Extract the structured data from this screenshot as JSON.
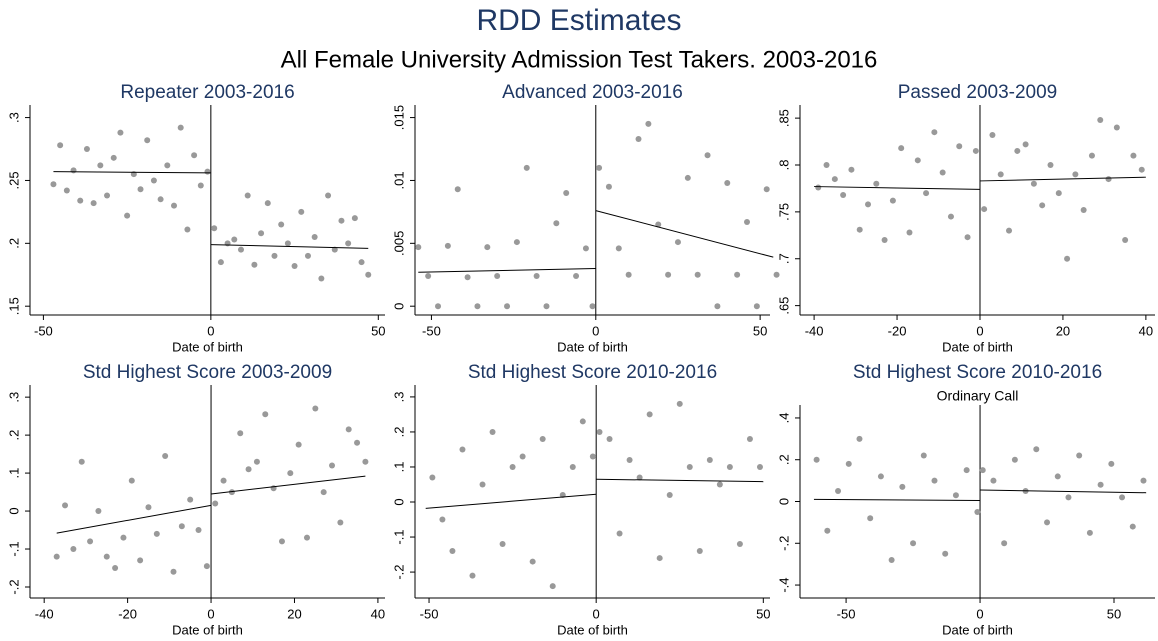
{
  "title": "RDD Estimates",
  "subtitle": "All Female University Admission Test Takers. 2003-2016",
  "chart_data": [
    {
      "type": "scatter",
      "title": "Repeater 2003-2016",
      "xlabel": "Date of birth",
      "color": "#999999",
      "cutoff": 0,
      "xlim": [
        -54,
        52
      ],
      "ylim": [
        0.143,
        0.31
      ],
      "xticks": [
        -50,
        0,
        50
      ],
      "yticks": [
        {
          "value": 0.15,
          "label": ".15"
        },
        {
          "value": 0.2,
          "label": ".2"
        },
        {
          "value": 0.25,
          "label": ".25"
        },
        {
          "value": 0.3,
          "label": ".3"
        }
      ],
      "x": [
        -47,
        -45,
        -43,
        -41,
        -39,
        -37,
        -35,
        -33,
        -31,
        -29,
        -27,
        -25,
        -23,
        -21,
        -19,
        -17,
        -15,
        -13,
        -11,
        -9,
        -7,
        -5,
        -3,
        -1,
        1,
        3,
        5,
        7,
        9,
        11,
        13,
        15,
        17,
        19,
        21,
        23,
        25,
        27,
        29,
        31,
        33,
        35,
        37,
        39,
        41,
        43,
        45,
        47
      ],
      "y": [
        0.247,
        0.278,
        0.242,
        0.258,
        0.234,
        0.275,
        0.232,
        0.262,
        0.238,
        0.268,
        0.288,
        0.222,
        0.255,
        0.243,
        0.282,
        0.25,
        0.235,
        0.262,
        0.23,
        0.292,
        0.211,
        0.27,
        0.246,
        0.257,
        0.212,
        0.185,
        0.2,
        0.203,
        0.195,
        0.238,
        0.183,
        0.208,
        0.232,
        0.19,
        0.215,
        0.2,
        0.182,
        0.225,
        0.19,
        0.205,
        0.172,
        0.238,
        0.195,
        0.218,
        0.2,
        0.22,
        0.185,
        0.175
      ],
      "fits": [
        {
          "x": [
            -47,
            0
          ],
          "y": [
            0.257,
            0.256
          ]
        },
        {
          "x": [
            0,
            47
          ],
          "y": [
            0.199,
            0.196
          ]
        }
      ]
    },
    {
      "type": "scatter",
      "title": "Advanced 2003-2016",
      "xlabel": "Date of birth",
      "color": "#999999",
      "cutoff": 0,
      "xlim": [
        -55,
        53
      ],
      "ylim": [
        -0.0007,
        0.016
      ],
      "xticks": [
        -50,
        0,
        50
      ],
      "yticks": [
        0,
        {
          "value": 0.005,
          "label": ".005"
        },
        {
          "value": 0.01,
          "label": ".01"
        },
        {
          "value": 0.015,
          "label": ".015"
        }
      ],
      "x": [
        -54,
        -51,
        -48,
        -45,
        -42,
        -39,
        -36,
        -33,
        -30,
        -27,
        -24,
        -21,
        -18,
        -15,
        -12,
        -9,
        -6,
        -3,
        -1,
        1,
        4,
        7,
        10,
        13,
        16,
        19,
        22,
        25,
        28,
        31,
        34,
        37,
        40,
        43,
        46,
        49,
        52,
        55
      ],
      "y": [
        0.0047,
        0.0024,
        0,
        0.0048,
        0.0093,
        0.0023,
        0,
        0.0047,
        0.0024,
        0,
        0.0051,
        0.011,
        0.0024,
        0,
        0.0066,
        0.009,
        0.0024,
        0.0046,
        0,
        0.011,
        0.0095,
        0.0046,
        0.0025,
        0.0133,
        0.0145,
        0.0065,
        0.0025,
        0.0051,
        0.0102,
        0.0025,
        0.012,
        0,
        0.0098,
        0.0025,
        0.0067,
        0,
        0.0093,
        0.0025
      ],
      "fits": [
        {
          "x": [
            -54,
            0
          ],
          "y": [
            0.0027,
            0.003
          ]
        },
        {
          "x": [
            0,
            54
          ],
          "y": [
            0.0076,
            0.0039
          ]
        }
      ]
    },
    {
      "type": "scatter",
      "title": "Passed 2003-2009",
      "xlabel": "Date of birth",
      "color": "#999999",
      "cutoff": 0,
      "xlim": [
        -43.4,
        42.2
      ],
      "ylim": [
        0.64,
        0.864
      ],
      "xticks": [
        -40,
        -20,
        0,
        20,
        40
      ],
      "yticks": [
        {
          "value": 0.65,
          "label": ".65"
        },
        {
          "value": 0.7,
          "label": ".7"
        },
        {
          "value": 0.75,
          "label": ".75"
        },
        {
          "value": 0.8,
          "label": ".8"
        },
        {
          "value": 0.85,
          "label": ".85"
        }
      ],
      "x": [
        -39,
        -37,
        -35,
        -33,
        -31,
        -29,
        -27,
        -25,
        -23,
        -21,
        -19,
        -17,
        -15,
        -13,
        -11,
        -9,
        -7,
        -5,
        -3,
        -1,
        1,
        3,
        5,
        7,
        9,
        11,
        13,
        15,
        17,
        19,
        21,
        23,
        25,
        27,
        29,
        31,
        33,
        35,
        37,
        39
      ],
      "y": [
        0.776,
        0.8,
        0.785,
        0.768,
        0.795,
        0.731,
        0.758,
        0.78,
        0.72,
        0.762,
        0.818,
        0.728,
        0.805,
        0.77,
        0.835,
        0.792,
        0.745,
        0.82,
        0.723,
        0.815,
        0.753,
        0.832,
        0.79,
        0.73,
        0.815,
        0.822,
        0.78,
        0.757,
        0.8,
        0.77,
        0.7,
        0.79,
        0.752,
        0.81,
        0.848,
        0.785,
        0.84,
        0.72,
        0.81,
        0.795
      ],
      "fits": [
        {
          "x": [
            -40,
            0
          ],
          "y": [
            0.777,
            0.774
          ]
        },
        {
          "x": [
            0,
            40
          ],
          "y": [
            0.783,
            0.787
          ]
        }
      ]
    },
    {
      "type": "scatter",
      "title": "Std Highest Score 2003-2009",
      "xlabel": "Date of birth",
      "color": "#999999",
      "cutoff": 0,
      "xlim": [
        -43.4,
        41.7
      ],
      "ylim": [
        -0.229,
        0.332
      ],
      "xticks": [
        -40,
        -20,
        0,
        20,
        40
      ],
      "yticks": [
        {
          "value": -0.2,
          "label": "-.2"
        },
        {
          "value": -0.1,
          "label": "-.1"
        },
        0,
        {
          "value": 0.1,
          "label": ".1"
        },
        {
          "value": 0.2,
          "label": ".2"
        },
        {
          "value": 0.3,
          "label": ".3"
        }
      ],
      "x": [
        -37,
        -35,
        -33,
        -31,
        -29,
        -27,
        -25,
        -23,
        -21,
        -19,
        -17,
        -15,
        -13,
        -11,
        -9,
        -7,
        -5,
        -3,
        -1,
        1,
        3,
        5,
        7,
        9,
        11,
        13,
        15,
        17,
        19,
        21,
        23,
        25,
        27,
        29,
        31,
        33,
        35,
        37
      ],
      "y": [
        -0.12,
        0.015,
        -0.1,
        0.13,
        -0.08,
        0,
        -0.12,
        -0.15,
        -0.07,
        0.08,
        -0.13,
        0.01,
        -0.06,
        0.145,
        -0.16,
        -0.04,
        0.03,
        -0.05,
        -0.145,
        0.02,
        0.08,
        0.05,
        0.205,
        0.11,
        0.13,
        0.255,
        0.06,
        -0.08,
        0.1,
        0.175,
        -0.07,
        0.27,
        0.05,
        0.12,
        -0.03,
        0.215,
        0.18,
        0.13
      ],
      "fits": [
        {
          "x": [
            -37,
            0
          ],
          "y": [
            -0.058,
            0.015
          ]
        },
        {
          "x": [
            0,
            37
          ],
          "y": [
            0.045,
            0.092
          ]
        }
      ]
    },
    {
      "type": "scatter",
      "title": "Std Highest Score 2010-2016",
      "xlabel": "Date of birth",
      "color": "#999999",
      "cutoff": 0,
      "xlim": [
        -54.2,
        52
      ],
      "ylim": [
        -0.274,
        0.334
      ],
      "xticks": [
        -50,
        0,
        50
      ],
      "yticks": [
        {
          "value": -0.2,
          "label": "-.2"
        },
        {
          "value": -0.1,
          "label": "-.1"
        },
        0,
        {
          "value": 0.1,
          "label": ".1"
        },
        {
          "value": 0.2,
          "label": ".2"
        },
        {
          "value": 0.3,
          "label": ".3"
        }
      ],
      "x": [
        -49,
        -46,
        -43,
        -40,
        -37,
        -34,
        -31,
        -28,
        -25,
        -22,
        -19,
        -16,
        -13,
        -10,
        -7,
        -4,
        -1,
        1,
        4,
        7,
        10,
        13,
        16,
        19,
        22,
        25,
        28,
        31,
        34,
        37,
        40,
        43,
        46,
        49
      ],
      "y": [
        0.07,
        -0.05,
        -0.14,
        0.15,
        -0.21,
        0.05,
        0.2,
        -0.12,
        0.1,
        0.13,
        -0.17,
        0.18,
        -0.24,
        0.02,
        0.1,
        0.23,
        0.13,
        0.2,
        0.18,
        -0.09,
        0.12,
        0.07,
        0.25,
        -0.16,
        0.02,
        0.28,
        0.1,
        -0.14,
        0.12,
        0.05,
        0.1,
        -0.12,
        0.18,
        0.1
      ],
      "fits": [
        {
          "x": [
            -51,
            0
          ],
          "y": [
            -0.018,
            0.022
          ]
        },
        {
          "x": [
            0,
            50
          ],
          "y": [
            0.065,
            0.058
          ]
        }
      ]
    },
    {
      "type": "scatter",
      "title": "Std Highest Score 2010-2016",
      "subtitle": "Ordinary Call",
      "xlabel": "Date of birth",
      "color": "#999999",
      "cutoff": 0,
      "xlim": [
        -67.2,
        65.3
      ],
      "ylim": [
        -0.462,
        0.462
      ],
      "xticks": [
        -50,
        0,
        50
      ],
      "yticks": [
        {
          "value": -0.4,
          "label": "-.4"
        },
        {
          "value": -0.2,
          "label": "-.2"
        },
        0,
        {
          "value": 0.2,
          "label": ".2"
        },
        {
          "value": 0.4,
          "label": ".4"
        }
      ],
      "x": [
        -61,
        -57,
        -53,
        -49,
        -45,
        -41,
        -37,
        -33,
        -29,
        -25,
        -21,
        -17,
        -13,
        -9,
        -5,
        -1,
        1,
        5,
        9,
        13,
        17,
        21,
        25,
        29,
        33,
        37,
        41,
        45,
        49,
        53,
        57,
        61
      ],
      "y": [
        0.2,
        -0.14,
        0.05,
        0.18,
        0.3,
        -0.08,
        0.12,
        -0.28,
        0.07,
        -0.2,
        0.22,
        0.1,
        -0.25,
        0.03,
        0.15,
        -0.05,
        0.15,
        0.1,
        -0.2,
        0.2,
        0.05,
        0.25,
        -0.1,
        0.12,
        0.02,
        0.22,
        -0.15,
        0.08,
        0.18,
        0.02,
        -0.12,
        0.1
      ],
      "fits": [
        {
          "x": [
            -62,
            0
          ],
          "y": [
            0.01,
            0.005
          ]
        },
        {
          "x": [
            0,
            62
          ],
          "y": [
            0.055,
            0.042
          ]
        }
      ]
    }
  ]
}
